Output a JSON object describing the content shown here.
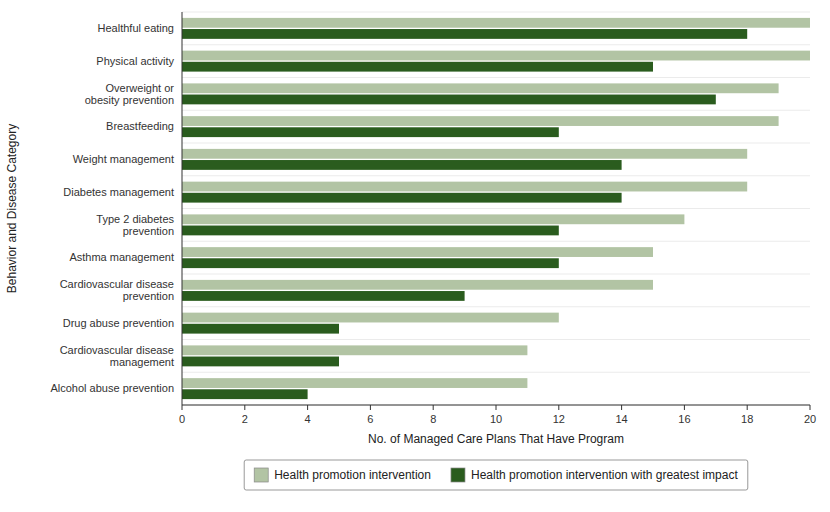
{
  "chart_data": {
    "type": "bar",
    "orientation": "horizontal",
    "categories": [
      "Healthful eating",
      "Physical activity",
      "Overweight or\nobesity prevention",
      "Breastfeeding",
      "Weight management",
      "Diabetes management",
      "Type 2 diabetes\nprevention",
      "Asthma management",
      "Cardiovascular disease\nprevention",
      "Drug abuse prevention",
      "Cardiovascular disease\nmanagement",
      "Alcohol abuse prevention"
    ],
    "series": [
      {
        "name": "Health promotion intervention",
        "color": "#b2c4a4",
        "values": [
          20,
          20,
          19,
          19,
          18,
          18,
          16,
          15,
          15,
          12,
          11,
          11
        ]
      },
      {
        "name": "Health promotion intervention with greatest impact",
        "color": "#2a5c1e",
        "values": [
          18,
          15,
          17,
          12,
          14,
          14,
          12,
          12,
          9,
          5,
          5,
          4
        ]
      }
    ],
    "xlabel": "No. of Managed Care Plans That Have Program",
    "ylabel": "Behavior and Disease Category",
    "xlim": [
      0,
      20
    ],
    "xticks": [
      0,
      2,
      4,
      6,
      8,
      10,
      12,
      14,
      16,
      18,
      20
    ],
    "grid": false,
    "legend": "bottom"
  }
}
